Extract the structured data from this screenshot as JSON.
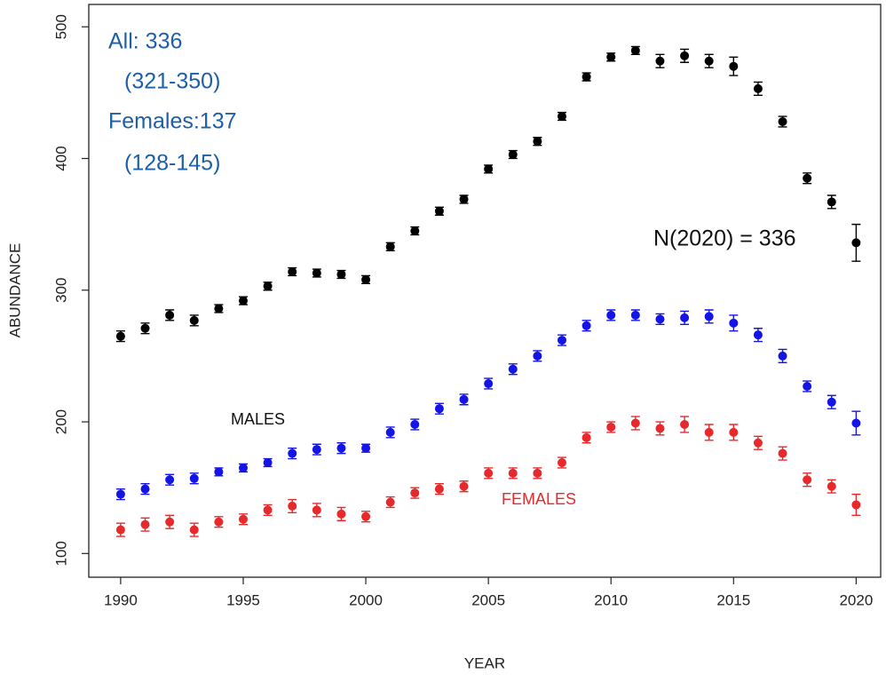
{
  "chart_data": {
    "type": "scatter",
    "x_label": "YEAR",
    "y_label": "ABUNDANCE",
    "xlim": [
      1988.7,
      2021
    ],
    "ylim": [
      82,
      517
    ],
    "xticks": [
      1990,
      1995,
      2000,
      2005,
      2010,
      2015,
      2020
    ],
    "yticks": [
      100,
      200,
      300,
      400,
      500
    ],
    "x": [
      1990,
      1991,
      1992,
      1993,
      1994,
      1995,
      1996,
      1997,
      1998,
      1999,
      2000,
      2001,
      2002,
      2003,
      2004,
      2005,
      2006,
      2007,
      2008,
      2009,
      2010,
      2011,
      2012,
      2013,
      2014,
      2015,
      2016,
      2017,
      2018,
      2019,
      2020
    ],
    "series": [
      {
        "color": "#000000",
        "values": [
          265,
          271,
          281,
          277,
          286,
          292,
          303,
          314,
          313,
          312,
          308,
          333,
          345,
          360,
          369,
          392,
          403,
          413,
          432,
          462,
          477,
          482,
          474,
          478,
          474,
          470,
          453,
          428,
          385,
          367,
          336
        ],
        "errors": [
          4,
          4,
          4,
          4,
          3,
          3,
          3,
          3,
          3,
          3,
          3,
          3,
          3,
          3,
          3,
          3,
          3,
          3,
          3,
          3,
          3,
          3,
          5,
          5,
          5,
          7,
          5,
          4,
          4,
          5,
          14
        ]
      },
      {
        "name": "MALES",
        "color": "#1414e6",
        "values": [
          145,
          149,
          156,
          157,
          162,
          165,
          169,
          176,
          179,
          180,
          180,
          192,
          198,
          210,
          217,
          229,
          240,
          250,
          262,
          273,
          281,
          281,
          278,
          279,
          280,
          275,
          266,
          250,
          227,
          215,
          199
        ],
        "errors": [
          4,
          4,
          4,
          4,
          3,
          3,
          3,
          4,
          4,
          4,
          3,
          4,
          4,
          4,
          4,
          4,
          4,
          4,
          4,
          4,
          4,
          4,
          4,
          5,
          5,
          6,
          5,
          5,
          4,
          5,
          9
        ]
      },
      {
        "name": "FEMALES",
        "color": "#e8292b",
        "values": [
          118,
          122,
          124,
          118,
          124,
          126,
          133,
          136,
          133,
          130,
          128,
          139,
          146,
          149,
          151,
          161,
          161,
          161,
          169,
          188,
          196,
          199,
          195,
          198,
          192,
          192,
          184,
          176,
          156,
          151,
          137
        ],
        "errors": [
          5,
          5,
          5,
          5,
          4,
          4,
          4,
          5,
          5,
          5,
          4,
          4,
          4,
          4,
          4,
          4,
          4,
          4,
          4,
          4,
          4,
          5,
          5,
          6,
          6,
          6,
          5,
          5,
          5,
          5,
          8
        ]
      }
    ],
    "annotations": [
      "All: 336",
      "(321-350)",
      "Females:137",
      "(128-145)",
      "N(2020) = 336"
    ]
  }
}
